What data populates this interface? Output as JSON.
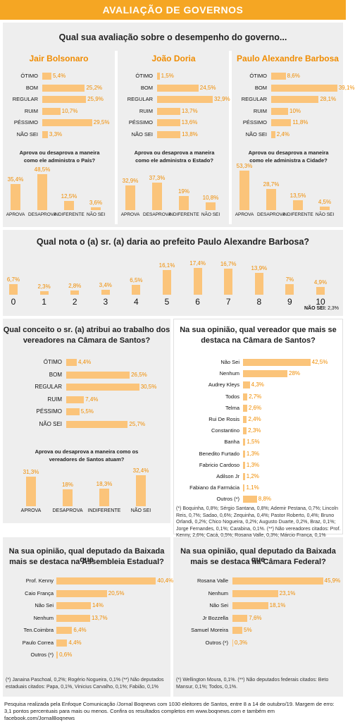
{
  "header": {
    "title": "AVALIAÇÃO DE GOVERNOS"
  },
  "governo": {
    "question": "Qual sua avaliação sobre o desempenho do governo...",
    "categories": [
      "ÓTIMO",
      "BOM",
      "REGULAR",
      "RUIM",
      "PÉSSIMO",
      "NÃO SEI"
    ],
    "blocks": [
      {
        "name": "Jair Bolsonaro",
        "values": [
          5.4,
          25.2,
          25.9,
          10.7,
          29.5,
          3.3
        ],
        "labels": [
          "5,4%",
          "25,2%",
          "25,9%",
          "10,7%",
          "29,5%",
          "3,3%"
        ],
        "aprova_q1": "Aprova ou desaprova a maneira",
        "aprova_q2": "como ele administra o País?",
        "aprova_values": [
          35.4,
          48.5,
          12.5,
          3.6
        ],
        "aprova_labels": [
          "35,4%",
          "48,5%",
          "12,5%",
          "3,6%"
        ]
      },
      {
        "name": "João Doria",
        "values": [
          1.5,
          24.5,
          32.9,
          13.7,
          13.6,
          13.8
        ],
        "labels": [
          "1,5%",
          "24,5%",
          "32,9%",
          "13,7%",
          "13,6%",
          "13,8%"
        ],
        "aprova_q1": "Aprova ou desaprova a maneira",
        "aprova_q2": "como ele administra o Estado?",
        "aprova_values": [
          32.9,
          37.3,
          19,
          10.8
        ],
        "aprova_labels": [
          "32,9%",
          "37,3%",
          "19%",
          "10,8%"
        ]
      },
      {
        "name": "Paulo Alexandre Barbosa",
        "values": [
          8.6,
          39.1,
          28.1,
          10,
          11.8,
          2.4
        ],
        "labels": [
          "8,6%",
          "39,1%",
          "28,1%",
          "10%",
          "11,8%",
          "2,4%"
        ],
        "aprova_q1": "Aprova ou desaprova a maneira",
        "aprova_q2": "como ele administra a Cidade?",
        "aprova_values": [
          53.3,
          28.7,
          13.5,
          4.5
        ],
        "aprova_labels": [
          "53,3%",
          "28,7%",
          "13,5%",
          "4,5%"
        ]
      }
    ],
    "aprova_categories": [
      "APROVA",
      "DESAPROVA",
      "INDIFERENTE",
      "NÃO SEI"
    ]
  },
  "nota": {
    "question": "Qual nota o (a) sr. (a) daria ao prefeito Paulo Alexandre Barbosa?",
    "x": [
      "0",
      "1",
      "2",
      "3",
      "4",
      "5",
      "6",
      "7",
      "8",
      "9",
      "10"
    ],
    "values": [
      6.7,
      2.3,
      2.8,
      3.4,
      6.5,
      16.1,
      17.4,
      16.7,
      13.9,
      7,
      4.9
    ],
    "labels": [
      "6,7%",
      "2,3%",
      "2,8%",
      "3,4%",
      "6,5%",
      "16,1%",
      "17,4%",
      "16,7%",
      "13,9%",
      "7%",
      "4,9%"
    ],
    "nao_sei_label": "NÃO SEI:",
    "nao_sei_value": "2,3%"
  },
  "vereadores": {
    "q1": "Qual conceito o sr. (a) atribui ao trabalho dos",
    "q2": "vereadores na Câmara de Santos?",
    "categories": [
      "ÓTIMO",
      "BOM",
      "REGULAR",
      "RUIM",
      "PÉSSIMO",
      "NÃO SEI"
    ],
    "values": [
      4.4,
      26.5,
      30.5,
      7.4,
      5.5,
      25.7
    ],
    "labels": [
      "4,4%",
      "26,5%",
      "30,5%",
      "7,4%",
      "5,5%",
      "25,7%"
    ],
    "aprova_q1": "Aprova ou desaprova a maneira como os",
    "aprova_q2": "vereadores de Santos atuam?",
    "aprova_categories": [
      "APROVA",
      "DESAPROVA",
      "INDIFERENTE",
      "NÃO SEI"
    ],
    "aprova_values": [
      31.3,
      18,
      18.3,
      32.4
    ],
    "aprova_labels": [
      "31,3%",
      "18%",
      "18,3%",
      "32,4%"
    ]
  },
  "destaque_vereador": {
    "q1": "Na sua opinião, qual vereador que mais se",
    "q2": "destaca na Câmara de Santos?",
    "categories": [
      "Não Sei",
      "Nenhum",
      "Audrey Kleys",
      "Todos",
      "Telma",
      "Rui De Rosis",
      "Constantino",
      "Banha",
      "Benedito Furtado",
      "Fabricio Cardoso",
      "Adilson Jr",
      "Fabiano da Farmácia",
      "Outros (*)"
    ],
    "values": [
      42.5,
      28,
      4.3,
      2.7,
      2.6,
      2.4,
      2.3,
      1.5,
      1.3,
      1.3,
      1.2,
      1.1,
      8.8
    ],
    "labels": [
      "42,5%",
      "28%",
      "4,3%",
      "2,7%",
      "2,6%",
      "2,4%",
      "2,3%",
      "1,5%",
      "1,3%",
      "1,3%",
      "1,2%",
      "1,1%",
      "8,8%"
    ],
    "note": "(*) Boquinha, 0,8%; Sérgio Santana, 0,8%; Ademir Pestana, 0,7%; Lincoln Reis, 0,7%; Sadao, 0,6%; Zequinha, 0,4%; Pastor Roberto, 0,4%; Bruno Orlandi, 0,2%; Chico Nogueira, 0,2%; Augusto Duarte, 0,2%, Braz, 0,1%; Jorge Fernandes, 0,1%; Carabina, 0,1%. (**) Não vereadores citados: Prof. Kenny, 2,6%; Cacá, 0,5%; Rosana Valle, 0,3%; Márcio França, 0,1%"
  },
  "deputado_estadual": {
    "q1": "Na sua opinião, qual deputado da Baixada que",
    "q2": "mais se destaca na Assembleia Estadual?",
    "categories": [
      "Prof. Kenny",
      "Caio França",
      "Não Sei",
      "Nenhum",
      "Ten.Coimbra",
      "Paulo Correa",
      "Outros (*)"
    ],
    "values": [
      40.4,
      20.5,
      14,
      13.7,
      6.4,
      4.4,
      0.6
    ],
    "labels": [
      "40,4%",
      "20,5%",
      "14%",
      "13,7%",
      "6,4%",
      "4,4%",
      "0,6%"
    ],
    "note": "(*) Janaina Paschoal, 0,2%; Rogério Nogueira, 0,1% (**) Não deputados estaduais citados: Papa, 0,1%, Vinicius Carvalho, 0,1%; Fabião, 0,1%"
  },
  "deputado_federal": {
    "q1": "Na sua opinião, qual deputado da Baixada que",
    "q2": "mais se destaca na Câmara Federal?",
    "categories": [
      "Rosana Valle",
      "Nenhum",
      "Não Sei",
      "Jr Bozzella",
      "Samuel Moreira",
      "Outros (*)"
    ],
    "values": [
      45.9,
      23.1,
      18.1,
      7.6,
      5,
      0.3
    ],
    "labels": [
      "45,9%",
      "23,1%",
      "18,1%",
      "7,6%",
      "5%",
      "0,3%"
    ],
    "note": "(*) Wellington Moura, 0,1%. (**) Não deputados federais citados: Beto Mansur, 0,1%; Todos, 0,1%."
  },
  "footer": "Pesquisa realizada pela Enfoque Comunicação /Jornal Boqnews com 1030 eleitores de Santos, entre 8 a 14 de outubro/19. Margem de erro: 3,1 pontos percentuais para mais ou menos. Confira os resultados completos em www.boqnews.com e também em facebook.com/JornalBoqnews",
  "colors": {
    "accent": "#f5a623",
    "bar": "#fbc47a",
    "value": "#f08c00",
    "panel": "#eeeeee"
  }
}
